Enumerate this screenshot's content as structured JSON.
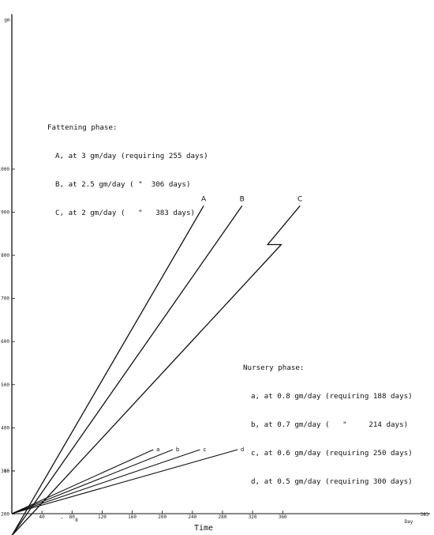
{
  "chart_data": {
    "type": "line",
    "xlabel": "Time",
    "x_unit_label": "Day",
    "x_ticks": [
      "40",
      "80",
      "120",
      "160",
      "200",
      "240",
      "280",
      "320",
      "360"
    ],
    "x_tick_extra": "383",
    "x_stray_marks": [
      "’",
      "8"
    ],
    "y_unit_label": "gm",
    "y_ticks": [
      "10",
      "100",
      "200",
      "300",
      "400",
      "500",
      "600",
      "700",
      "800",
      "900",
      "1000"
    ],
    "y_scale_note": "broken axis: lower section 0-15 gm, upper section 100-1000 gm",
    "fattening_series": [
      {
        "name": "A",
        "start": [
          0,
          150
        ],
        "end": [
          255,
          915
        ]
      },
      {
        "name": "B",
        "start": [
          0,
          150
        ],
        "end": [
          306,
          915
        ]
      },
      {
        "name": "C",
        "start": [
          0,
          150
        ],
        "end": [
          383,
          915
        ],
        "notch": [
          [
            358,
            825
          ],
          [
            340,
            825
          ]
        ]
      }
    ],
    "nursery_series": [
      {
        "name": "a",
        "start": [
          0,
          0
        ],
        "end": [
          188,
          15
        ]
      },
      {
        "name": "b",
        "start": [
          0,
          0
        ],
        "end": [
          214,
          15
        ]
      },
      {
        "name": "c",
        "start": [
          0,
          0
        ],
        "end": [
          250,
          15
        ]
      },
      {
        "name": "d",
        "start": [
          0,
          0
        ],
        "end": [
          300,
          15
        ]
      }
    ],
    "annotations": {
      "fattening": {
        "heading": "Fattening phase:",
        "lines": [
          "A, at 3 gm/day (requiring 255 days)",
          "B, at 2.5 gm/day ( \"  306 days)",
          "C, at 2 gm/day (   \"   383 days)"
        ]
      },
      "nursery": {
        "heading": "Nursery phase:",
        "lines": [
          "a, at 0.8 gm/day (requiring 188 days)",
          "b, at 0.7 gm/day (   \"     214 days)",
          "c, at 0.6 gm/day (requiring 250 days)",
          "d, at 0.5 gm/day (requiring 300 days)"
        ]
      }
    },
    "grid": false,
    "line_color": "#111111"
  }
}
